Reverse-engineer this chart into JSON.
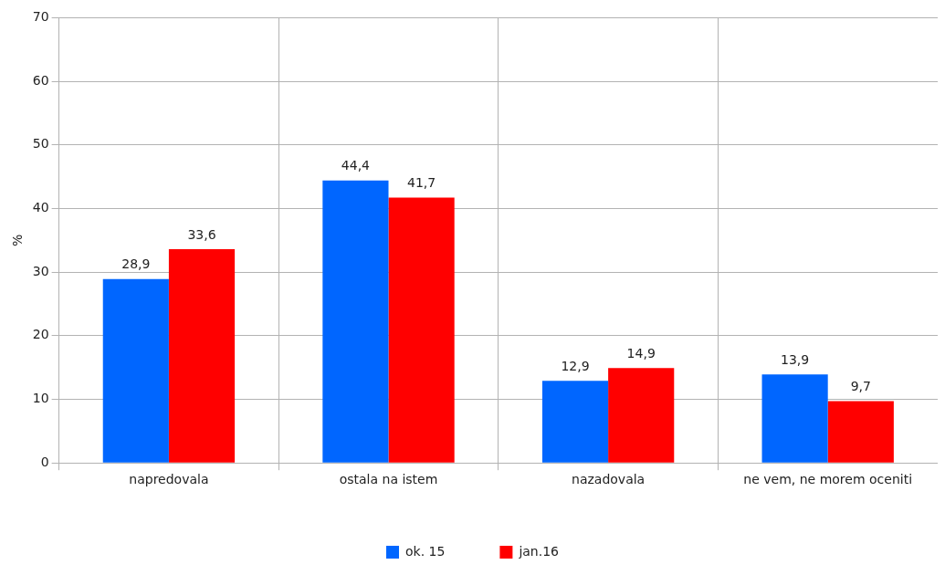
{
  "chart_data": {
    "type": "bar",
    "ylabel": "%",
    "categories": [
      "napredovala",
      "ostala na istem",
      "nazadovala",
      "ne vem, ne morem oceniti"
    ],
    "series": [
      {
        "name": "ok. 15",
        "color": "#0066ff",
        "values": [
          28.9,
          44.4,
          12.9,
          13.9
        ],
        "value_labels": [
          "28,9",
          "44,4",
          "12,9",
          "13,9"
        ]
      },
      {
        "name": "jan.16",
        "color": "#ff0000",
        "values": [
          33.6,
          41.7,
          14.9,
          9.7
        ],
        "value_labels": [
          "33,6",
          "41,7",
          "14,9",
          "9,7"
        ]
      }
    ],
    "ylim": [
      0,
      70
    ],
    "yticks": [
      0,
      10,
      20,
      30,
      40,
      50,
      60,
      70
    ],
    "grid": true,
    "legend": "bottom"
  }
}
